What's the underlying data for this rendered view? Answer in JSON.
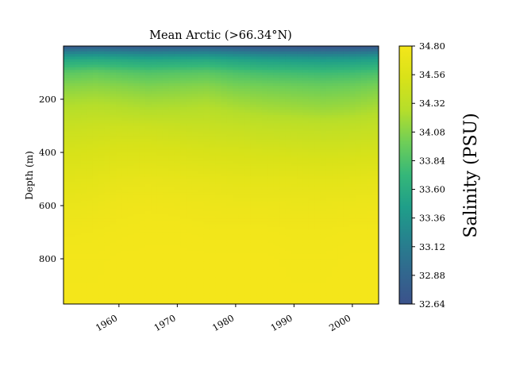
{
  "chart_data": {
    "type": "heatmap",
    "title": "Mean Arctic (>66.34°N)",
    "xlabel": "",
    "ylabel": "Depth (m)",
    "x_ticks": [
      "1960",
      "1970",
      "1980",
      "1990",
      "2000"
    ],
    "x_tick_values": [
      1960,
      1970,
      1980,
      1990,
      2000
    ],
    "xlim": [
      1950.5,
      2004.5
    ],
    "y_ticks": [
      "200",
      "400",
      "600",
      "800"
    ],
    "y_tick_values": [
      200,
      400,
      600,
      800
    ],
    "ylim": [
      0,
      970
    ],
    "y_inverted": true,
    "colorbar": {
      "label": "Salinity (PSU)",
      "ticks": [
        "34.80",
        "34.56",
        "34.32",
        "34.08",
        "33.84",
        "33.60",
        "33.36",
        "33.12",
        "32.88",
        "32.64"
      ],
      "tick_values": [
        34.8,
        34.56,
        34.32,
        34.08,
        33.84,
        33.6,
        33.36,
        33.12,
        32.88,
        32.64
      ],
      "range": [
        32.64,
        34.8
      ],
      "colormap": "viridis"
    },
    "years": [
      1951,
      1956,
      1960,
      1965,
      1970,
      1975,
      1980,
      1985,
      1990,
      1995,
      2000,
      2004
    ],
    "depths": [
      0,
      20,
      50,
      100,
      150,
      200,
      250,
      300,
      400,
      500,
      600,
      700,
      800,
      970
    ],
    "salinity": [
      [
        32.7,
        32.75,
        32.73,
        32.7,
        32.72,
        32.74,
        32.7,
        32.68,
        32.66,
        32.64,
        32.66,
        32.7
      ],
      [
        33.1,
        33.15,
        33.12,
        33.08,
        33.1,
        33.12,
        33.06,
        33.02,
        33.0,
        32.98,
        33.0,
        33.05
      ],
      [
        33.55,
        33.58,
        33.56,
        33.52,
        33.54,
        33.56,
        33.5,
        33.46,
        33.44,
        33.42,
        33.44,
        33.48
      ],
      [
        33.9,
        33.94,
        33.9,
        33.86,
        33.88,
        33.9,
        33.84,
        33.8,
        33.78,
        33.76,
        33.78,
        33.82
      ],
      [
        34.08,
        34.1,
        34.08,
        34.04,
        34.06,
        34.08,
        34.02,
        34.0,
        33.98,
        33.96,
        33.98,
        34.02
      ],
      [
        34.2,
        34.22,
        34.2,
        34.17,
        34.18,
        34.2,
        34.15,
        34.12,
        34.1,
        34.08,
        34.1,
        34.14
      ],
      [
        34.3,
        34.32,
        34.3,
        34.27,
        34.28,
        34.3,
        34.26,
        34.23,
        34.21,
        34.19,
        34.21,
        34.25
      ],
      [
        34.4,
        34.42,
        34.43,
        34.42,
        34.4,
        34.39,
        34.37,
        34.35,
        34.34,
        34.33,
        34.34,
        34.36
      ],
      [
        34.52,
        34.54,
        34.56,
        34.56,
        34.55,
        34.53,
        34.52,
        34.51,
        34.5,
        34.49,
        34.5,
        34.51
      ],
      [
        34.62,
        34.64,
        34.67,
        34.68,
        34.67,
        34.66,
        34.64,
        34.64,
        34.64,
        34.63,
        34.64,
        34.65
      ],
      [
        34.7,
        34.72,
        34.75,
        34.76,
        34.75,
        34.74,
        34.73,
        34.73,
        34.72,
        34.72,
        34.73,
        34.74
      ],
      [
        34.76,
        34.77,
        34.78,
        34.79,
        34.79,
        34.78,
        34.78,
        34.78,
        34.77,
        34.77,
        34.78,
        34.78
      ],
      [
        34.79,
        34.79,
        34.8,
        34.8,
        34.8,
        34.8,
        34.8,
        34.8,
        34.79,
        34.79,
        34.8,
        34.8
      ],
      [
        34.8,
        34.8,
        34.8,
        34.8,
        34.8,
        34.8,
        34.8,
        34.8,
        34.8,
        34.8,
        34.8,
        34.8
      ]
    ]
  }
}
